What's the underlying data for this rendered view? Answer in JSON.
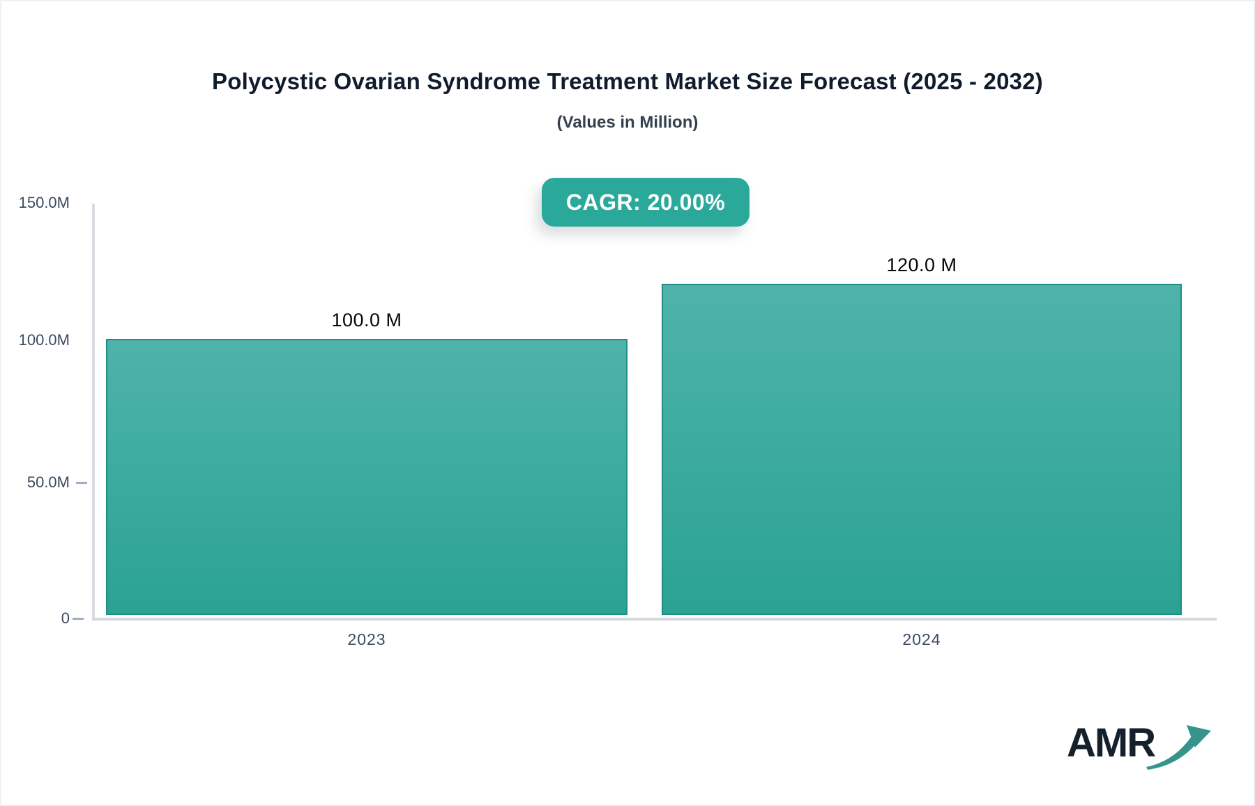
{
  "page": {
    "accent_color": "#2aa99b",
    "background_color": "#ffffff"
  },
  "chart_data": {
    "type": "bar",
    "title": "Polycystic Ovarian Syndrome Treatment Market Size Forecast (2025 - 2032)",
    "subtitle": "(Values in Million)",
    "categories": [
      "2023",
      "2024"
    ],
    "values": [
      100.0,
      120.0
    ],
    "value_labels": [
      "100.0 M",
      "120.0 M"
    ],
    "unit": "Million",
    "ylim": [
      0,
      150
    ],
    "ytick_labels": [
      "150.0M",
      "100.0M",
      "50.0M",
      "0"
    ],
    "grid": false,
    "legend": "none",
    "cagr": "20.00%",
    "bar_color_top": "#4fb3aa",
    "bar_color_bottom": "#2aa294",
    "bar_border_color": "#1f8e84",
    "axis_line_color": "#d7dade",
    "tick_label_color": "#3b4a61"
  },
  "cagr_badge": {
    "label": "CAGR: 20.00%"
  },
  "footer": {
    "logo_text": "AMR",
    "logo_arrow_icon": "trend-up-arrow",
    "logo_text_color": "#14212c",
    "logo_arrow_color": "#35958c"
  }
}
